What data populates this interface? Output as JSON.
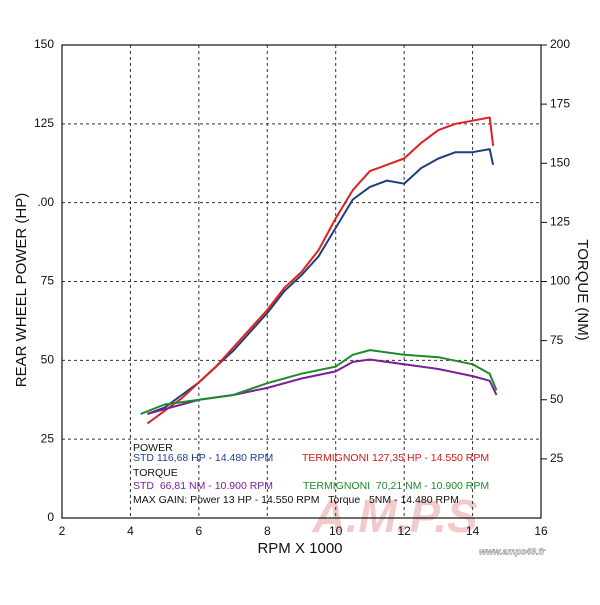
{
  "chart_data": {
    "type": "line",
    "ylabel": "REAR WHEEL POWER (HP)",
    "y2label": "TORQUE (NM)",
    "xlabel": "RPM X 1000",
    "xlim": [
      2,
      16
    ],
    "xticks": [
      2,
      4,
      6,
      8,
      10,
      12,
      14,
      16
    ],
    "ylim": [
      0,
      150
    ],
    "yticks": [
      0,
      25,
      50,
      75,
      {
        "value": 100,
        "label": ".00"
      },
      125,
      150
    ],
    "y2lim": [
      0,
      200
    ],
    "y2ticks": [
      25,
      50,
      75,
      100,
      125,
      150,
      175,
      200
    ],
    "grid": true,
    "series": [
      {
        "name": "STD POWER",
        "color": "#1f3f7a",
        "x": [
          4.5,
          5,
          5.5,
          6,
          6.5,
          7,
          7.5,
          8,
          8.5,
          9,
          9.5,
          10,
          10.5,
          11,
          11.5,
          12,
          12.5,
          13,
          13.5,
          14,
          14.5,
          14.6
        ],
        "values": [
          33,
          35,
          39,
          43,
          48,
          53,
          59,
          65,
          72,
          77,
          83,
          92,
          101,
          105,
          107,
          106,
          111,
          114,
          116,
          116,
          117,
          112
        ]
      },
      {
        "name": "TERMIGNONI POWER",
        "color": "#e02020",
        "x": [
          4.5,
          5,
          5.5,
          6,
          6.5,
          7,
          7.5,
          8,
          8.5,
          9,
          9.5,
          10,
          10.5,
          11,
          11.5,
          12,
          12.5,
          13,
          13.5,
          14,
          14.5,
          14.6
        ],
        "values": [
          30,
          34,
          38,
          43,
          48,
          54,
          60,
          66,
          73,
          78,
          85,
          95,
          104,
          110,
          112,
          114,
          119,
          123,
          125,
          126,
          127,
          118
        ]
      },
      {
        "name": "STD TORQUE",
        "color": "#7a1f9a",
        "axis": "y2",
        "x": [
          4.5,
          5,
          5.5,
          6,
          7,
          8,
          9,
          10,
          10.5,
          11,
          12,
          13,
          14,
          14.5,
          14.7
        ],
        "values": [
          44,
          46,
          48,
          50,
          52,
          55,
          59,
          62,
          66,
          67,
          65,
          63,
          60,
          58,
          52
        ]
      },
      {
        "name": "TERMIGNONI TORQUE",
        "color": "#1f8a2a",
        "axis": "y2",
        "x": [
          4.3,
          5,
          5.5,
          6,
          7,
          8,
          9,
          10,
          10.5,
          11,
          12,
          13,
          14,
          14.5,
          14.7
        ],
        "values": [
          44,
          48,
          49,
          50,
          52,
          57,
          61,
          64,
          69,
          71,
          69,
          68,
          65,
          61,
          54
        ]
      }
    ],
    "annotations": [
      {
        "text": "POWER",
        "color": "#111111"
      },
      {
        "text": "STD 116,68 HP - 14.480 RPM",
        "color": "#1f3f9a"
      },
      {
        "text": "TERMIGNONI 127,35 HP - 14.550 RPM",
        "color": "#d01818"
      },
      {
        "text": "TORQUE",
        "color": "#111111"
      },
      {
        "text": "STD  66,81 NM - 10.900 RPM",
        "color": "#7a1f9a"
      },
      {
        "text": "TERMIGNONI  70,21 NM - 10.900 RPM",
        "color": "#1f8a2a"
      },
      {
        "text": "MAX GAIN: Power 13 HP - 14.550 RPM   Torque   5NM - 14.480 RPM",
        "color": "#111111"
      }
    ],
    "watermark": [
      "A.M.P.S",
      "www.amps49.fr"
    ]
  }
}
